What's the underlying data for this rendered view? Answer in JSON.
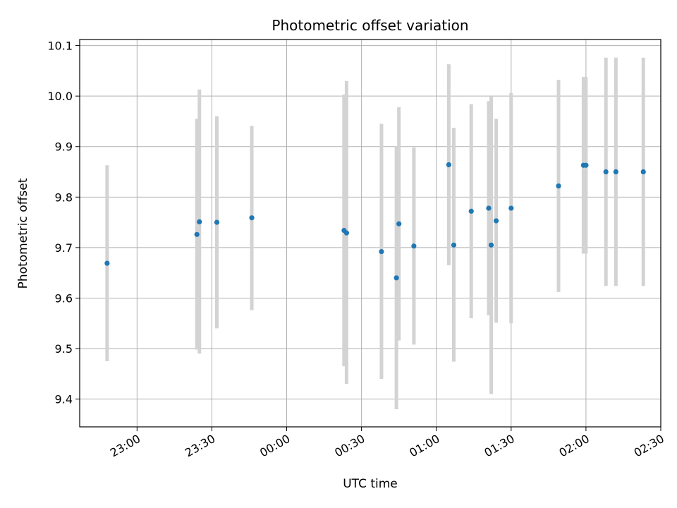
{
  "chart_data": {
    "type": "scatter",
    "title": "Photometric offset variation",
    "xlabel": "UTC time",
    "ylabel": "Photometric offset",
    "x_axis_kind": "time",
    "xlim": [
      "22:37",
      "02:30"
    ],
    "ylim": [
      9.345,
      10.112
    ],
    "x_ticks": [
      "23:00",
      "23:30",
      "00:00",
      "00:30",
      "01:00",
      "01:30",
      "02:00",
      "02:30"
    ],
    "y_ticks": [
      9.4,
      9.5,
      9.6,
      9.7,
      9.8,
      9.9,
      10.0,
      10.1
    ],
    "y_tick_labels": [
      "9.4",
      "9.5",
      "9.6",
      "9.7",
      "9.8",
      "9.9",
      "10.0",
      "10.1"
    ],
    "grid": true,
    "point_color": "#1f77b4",
    "errorbar_color": "#d3d3d3",
    "points": [
      {
        "t": "22:48",
        "y": 9.669,
        "lo": 9.475,
        "hi": 9.863
      },
      {
        "t": "23:24",
        "y": 9.726,
        "lo": 9.498,
        "hi": 9.955
      },
      {
        "t": "23:25",
        "y": 9.751,
        "lo": 9.49,
        "hi": 10.013
      },
      {
        "t": "23:32",
        "y": 9.75,
        "lo": 9.54,
        "hi": 9.96
      },
      {
        "t": "23:46",
        "y": 9.759,
        "lo": 9.576,
        "hi": 9.941
      },
      {
        "t": "00:23",
        "y": 9.734,
        "lo": 9.465,
        "hi": 10.003
      },
      {
        "t": "00:24",
        "y": 9.729,
        "lo": 9.43,
        "hi": 10.03
      },
      {
        "t": "00:38",
        "y": 9.692,
        "lo": 9.44,
        "hi": 9.945
      },
      {
        "t": "00:44",
        "y": 9.64,
        "lo": 9.38,
        "hi": 9.9
      },
      {
        "t": "00:45",
        "y": 9.747,
        "lo": 9.516,
        "hi": 9.978
      },
      {
        "t": "00:51",
        "y": 9.703,
        "lo": 9.508,
        "hi": 9.898
      },
      {
        "t": "01:05",
        "y": 9.864,
        "lo": 9.665,
        "hi": 10.063
      },
      {
        "t": "01:07",
        "y": 9.705,
        "lo": 9.474,
        "hi": 9.937
      },
      {
        "t": "01:14",
        "y": 9.772,
        "lo": 9.56,
        "hi": 9.984
      },
      {
        "t": "01:21",
        "y": 9.778,
        "lo": 9.566,
        "hi": 9.99
      },
      {
        "t": "01:22",
        "y": 9.705,
        "lo": 9.41,
        "hi": 10.0
      },
      {
        "t": "01:24",
        "y": 9.753,
        "lo": 9.551,
        "hi": 9.955
      },
      {
        "t": "01:30",
        "y": 9.778,
        "lo": 9.55,
        "hi": 10.006
      },
      {
        "t": "01:49",
        "y": 9.822,
        "lo": 9.612,
        "hi": 10.032
      },
      {
        "t": "01:59",
        "y": 9.863,
        "lo": 9.688,
        "hi": 10.038
      },
      {
        "t": "02:00",
        "y": 9.863,
        "lo": 9.688,
        "hi": 10.038
      },
      {
        "t": "02:08",
        "y": 9.85,
        "lo": 9.624,
        "hi": 10.076
      },
      {
        "t": "02:12",
        "y": 9.85,
        "lo": 9.624,
        "hi": 10.076
      },
      {
        "t": "02:23",
        "y": 9.85,
        "lo": 9.624,
        "hi": 10.076
      }
    ]
  }
}
